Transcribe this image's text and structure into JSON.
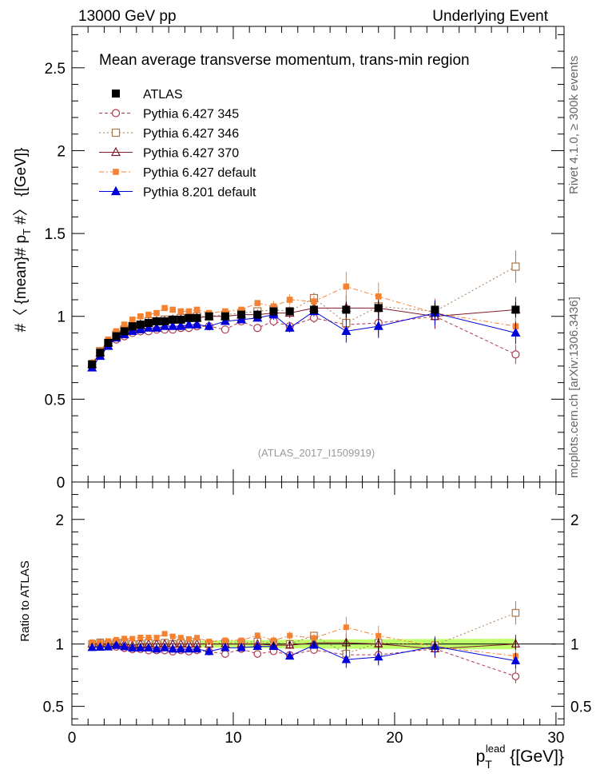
{
  "header": {
    "left": "13000 GeV pp",
    "right": "Underlying Event"
  },
  "side_labels": {
    "rivet": "Rivet 4.1.0, ≥ 300k events",
    "mcplots": "mcplots.cern.ch [arXiv:1306.3436]"
  },
  "chart_data": [
    {
      "type": "scatter",
      "panel": "main",
      "title": "Mean average transverse momentum, trans-min region",
      "watermark": "(ATLAS_2017_I1509919)",
      "xlabel": "p_T^lead [[GeV]]",
      "ylabel": "#〈 {mean}# p_T #〉 {[GeV]}",
      "xlim": [
        0,
        30.5
      ],
      "ylim": [
        0,
        2.75
      ],
      "yticks": [
        0.5,
        1,
        1.5,
        2,
        2.5
      ],
      "ytick_labels": [
        "0.5",
        "1",
        "1.5",
        "2",
        "2.5"
      ],
      "legend_position": "top-left",
      "x": [
        1.25,
        1.75,
        2.25,
        2.75,
        3.25,
        3.75,
        4.25,
        4.75,
        5.25,
        5.75,
        6.25,
        6.75,
        7.25,
        7.75,
        8.5,
        9.5,
        10.5,
        11.5,
        12.5,
        13.5,
        15,
        17,
        19,
        22.5,
        27.5
      ],
      "series": [
        {
          "name": "ATLAS",
          "style": "data",
          "color": "#000000",
          "values": [
            0.71,
            0.78,
            0.84,
            0.88,
            0.91,
            0.94,
            0.95,
            0.96,
            0.97,
            0.97,
            0.98,
            0.98,
            0.99,
            0.99,
            1.0,
            1.0,
            1.01,
            1.01,
            1.03,
            1.03,
            1.04,
            1.04,
            1.05,
            1.04,
            1.04
          ]
        },
        {
          "name": "Pythia 6.427 345",
          "style": "open-circle",
          "color": "#b0384d",
          "dash": "4,3",
          "values": [
            0.71,
            0.78,
            0.83,
            0.86,
            0.88,
            0.9,
            0.91,
            0.91,
            0.92,
            0.92,
            0.92,
            0.93,
            0.93,
            0.94,
            0.94,
            0.92,
            0.97,
            0.93,
            0.97,
            0.94,
            0.99,
            0.95,
            0.96,
            1.0,
            0.77
          ]
        },
        {
          "name": "Pythia 6.427 346",
          "style": "open-square",
          "color": "#a9774a",
          "dash": "2,3",
          "values": [
            0.71,
            0.79,
            0.84,
            0.89,
            0.92,
            0.94,
            0.95,
            0.97,
            0.97,
            0.98,
            0.98,
            0.99,
            0.99,
            1.0,
            1.0,
            1.01,
            1.02,
            1.03,
            1.04,
            1.03,
            1.11,
            0.96,
            1.06,
            1.03,
            1.3
          ]
        },
        {
          "name": "Pythia 6.427 370",
          "style": "open-triangle",
          "color": "#7f1a2a",
          "dash": "",
          "values": [
            0.71,
            0.78,
            0.84,
            0.88,
            0.91,
            0.93,
            0.95,
            0.96,
            0.97,
            0.97,
            0.98,
            0.98,
            0.99,
            0.99,
            1.0,
            1.0,
            1.01,
            1.01,
            1.02,
            1.02,
            1.05,
            1.05,
            1.05,
            1.0,
            1.04
          ]
        },
        {
          "name": "Pythia 6.427 default",
          "style": "filled-square",
          "color": "#f58231",
          "dash": "6,3,2,3",
          "values": [
            0.72,
            0.79,
            0.86,
            0.91,
            0.95,
            0.98,
            1.0,
            1.01,
            1.02,
            1.05,
            1.04,
            1.03,
            1.03,
            1.04,
            1.02,
            1.03,
            1.04,
            1.08,
            1.06,
            1.1,
            1.09,
            1.18,
            1.12,
            1.02,
            0.94
          ]
        },
        {
          "name": "Pythia 8.201 default",
          "style": "filled-triangle",
          "color": "#0000dd",
          "dash": "",
          "values": [
            0.69,
            0.76,
            0.82,
            0.87,
            0.89,
            0.91,
            0.92,
            0.93,
            0.93,
            0.94,
            0.94,
            0.94,
            0.95,
            0.95,
            0.94,
            0.97,
            0.98,
            0.99,
            1.01,
            0.93,
            1.03,
            0.91,
            0.94,
            1.02,
            0.9
          ]
        }
      ]
    },
    {
      "type": "scatter",
      "panel": "ratio",
      "ylabel": "Ratio to ATLAS",
      "xlabel": "p_T^lead [[GeV]]",
      "xlim": [
        0,
        30.5
      ],
      "ylim": [
        0.35,
        2.3
      ],
      "xticks": [
        0,
        10,
        20,
        30
      ],
      "xtick_labels": [
        "0",
        "10",
        "20",
        "30"
      ],
      "yticks": [
        0.5,
        1,
        2
      ],
      "ytick_labels": [
        "0.5",
        "1",
        "2"
      ],
      "band": "ATLAS uncertainty band around 1"
    }
  ],
  "colors": {
    "axis": "#000000",
    "watermark": "#999999",
    "side_text": "#666666",
    "band": "#a8ff3a"
  }
}
